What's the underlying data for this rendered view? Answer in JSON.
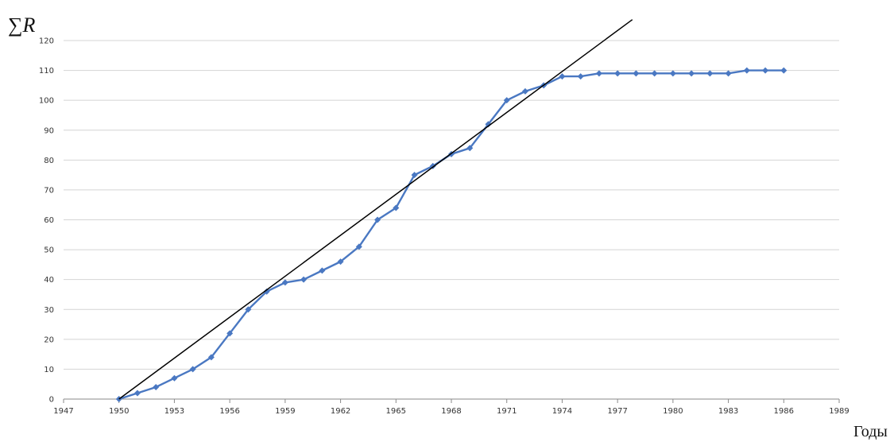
{
  "chart_data": {
    "type": "line",
    "title": "",
    "xlabel": "Годы",
    "ylabel": "∑R",
    "xlim": [
      1947,
      1989
    ],
    "ylim": [
      0,
      120
    ],
    "x_ticks": [
      1947,
      1950,
      1953,
      1956,
      1959,
      1962,
      1965,
      1968,
      1971,
      1974,
      1977,
      1980,
      1983,
      1986,
      1989
    ],
    "y_ticks": [
      0,
      10,
      20,
      30,
      40,
      50,
      60,
      70,
      80,
      90,
      100,
      110,
      120
    ],
    "grid": "horizontal",
    "legend": "none",
    "series": [
      {
        "color": "#4a78c2",
        "marker": "diamond",
        "points": [
          [
            1950,
            0
          ],
          [
            1951,
            2
          ],
          [
            1952,
            4
          ],
          [
            1953,
            7
          ],
          [
            1954,
            10
          ],
          [
            1955,
            14
          ],
          [
            1956,
            22
          ],
          [
            1957,
            30
          ],
          [
            1958,
            36
          ],
          [
            1959,
            39
          ],
          [
            1960,
            40
          ],
          [
            1961,
            43
          ],
          [
            1962,
            46
          ],
          [
            1963,
            51
          ],
          [
            1964,
            60
          ],
          [
            1965,
            64
          ],
          [
            1966,
            75
          ],
          [
            1967,
            78
          ],
          [
            1968,
            82
          ],
          [
            1969,
            84
          ],
          [
            1970,
            92
          ],
          [
            1971,
            100
          ],
          [
            1972,
            103
          ],
          [
            1973,
            105
          ],
          [
            1974,
            108
          ],
          [
            1975,
            108
          ],
          [
            1976,
            109
          ],
          [
            1977,
            109
          ],
          [
            1978,
            109
          ],
          [
            1979,
            109
          ],
          [
            1980,
            109
          ],
          [
            1981,
            109
          ],
          [
            1982,
            109
          ],
          [
            1983,
            109
          ],
          [
            1984,
            110
          ],
          [
            1985,
            110
          ],
          [
            1986,
            110
          ]
        ]
      },
      {
        "color": "#000000",
        "marker": "none",
        "points": [
          [
            1950,
            0
          ],
          [
            1977.8,
            127
          ]
        ]
      }
    ]
  }
}
